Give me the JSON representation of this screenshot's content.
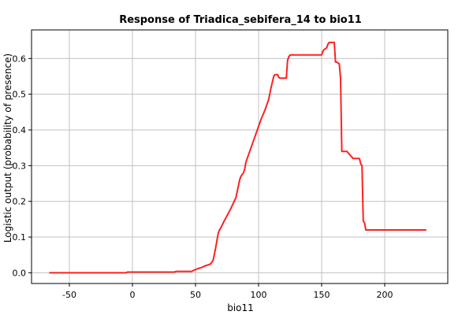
{
  "chart_data": {
    "type": "line",
    "title": "Response of Triadica_sebifera_14 to bio11",
    "xlabel": "bio11",
    "ylabel": "Logistic output (probability of presence)",
    "xlim": [
      -80,
      250
    ],
    "ylim": [
      -0.03,
      0.68
    ],
    "xticks": [
      -50,
      0,
      50,
      100,
      150,
      200
    ],
    "yticks": [
      0.0,
      0.1,
      0.2,
      0.3,
      0.4,
      0.5,
      0.6
    ],
    "xtick_labels": [
      "-50",
      "0",
      "50",
      "100",
      "150",
      "200"
    ],
    "ytick_labels": [
      "0.0",
      "0.1",
      "0.2",
      "0.3",
      "0.4",
      "0.5",
      "0.6"
    ],
    "grid": true,
    "line_color": "#ff2020",
    "series": [
      {
        "x": [
          -66,
          -5,
          -4,
          33,
          35,
          47,
          48,
          52,
          55,
          58,
          60,
          62,
          64,
          66,
          67,
          68,
          69,
          70,
          72,
          75,
          78,
          82,
          85,
          86,
          88,
          89,
          90,
          95,
          100,
          102,
          105,
          108,
          110,
          111,
          112,
          113,
          115,
          116,
          117,
          120,
          122,
          123,
          124,
          125,
          126,
          130,
          140,
          150,
          151,
          152,
          154,
          155,
          156,
          158,
          160,
          161,
          162,
          164,
          165,
          166,
          167,
          170,
          175,
          176,
          180,
          181,
          182,
          183,
          184,
          185,
          233
        ],
        "y": [
          0.0,
          0.0,
          0.002,
          0.002,
          0.004,
          0.004,
          0.006,
          0.012,
          0.015,
          0.02,
          0.022,
          0.025,
          0.035,
          0.07,
          0.09,
          0.11,
          0.12,
          0.125,
          0.14,
          0.16,
          0.18,
          0.21,
          0.26,
          0.27,
          0.28,
          0.29,
          0.31,
          0.36,
          0.41,
          0.43,
          0.455,
          0.485,
          0.52,
          0.535,
          0.55,
          0.555,
          0.555,
          0.547,
          0.545,
          0.545,
          0.545,
          0.595,
          0.605,
          0.61,
          0.61,
          0.61,
          0.61,
          0.61,
          0.62,
          0.625,
          0.63,
          0.64,
          0.645,
          0.645,
          0.645,
          0.59,
          0.59,
          0.585,
          0.545,
          0.34,
          0.34,
          0.34,
          0.32,
          0.32,
          0.32,
          0.305,
          0.3,
          0.145,
          0.14,
          0.12,
          0.12
        ]
      }
    ]
  }
}
